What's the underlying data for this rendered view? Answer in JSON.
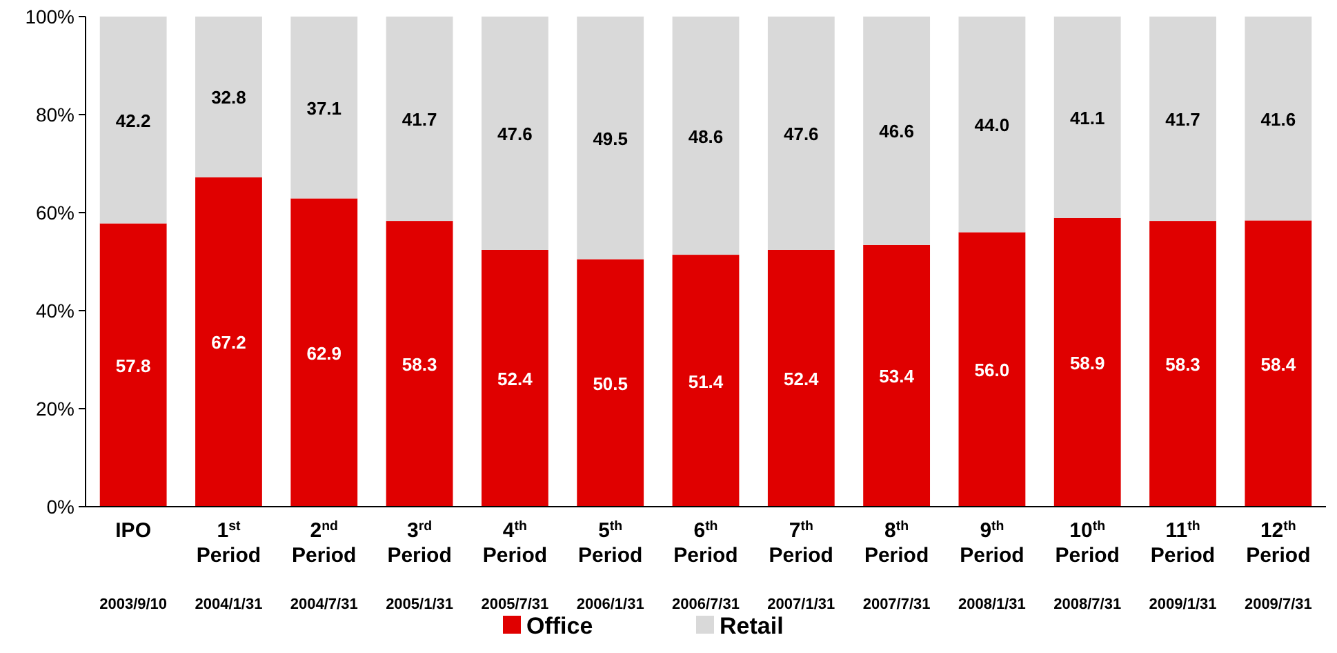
{
  "chart_data": {
    "type": "bar",
    "stacked": true,
    "categories": [
      "IPO\n\n2003/9/10",
      "1$^{st}$\nPeriod\n2004/1/31",
      "2$^{nd}$\nPeriod\n2004/7/31",
      "3$^{rd}$\nPeriod\n2005/1/31",
      "4$^{th}$\nPeriod\n2005/7/31",
      "5$^{th}$\nPeriod\n2006/1/31",
      "6$^{th}$\nPeriod\n2006/7/31",
      "7$^{th}$\nPeriod\n2007/1/31",
      "8$^{th}$\nPeriod\n2007/7/31",
      "9$^{th}$\nPeriod\n2008/1/31",
      "10$^{th}$\nPeriod\n2008/7/31",
      "11$^{th}$\nPeriod\n2009/1/31",
      "12$^{th}$\nPeriod\n2009/7/31"
    ],
    "series": [
      {
        "name": "Office",
        "color": "#e00000",
        "values": [
          57.8,
          67.2,
          62.9,
          58.3,
          52.4,
          50.5,
          51.4,
          52.4,
          53.4,
          56.0,
          58.9,
          58.3,
          58.4
        ],
        "value_labels": [
          "57.8",
          "67.2",
          "62.9",
          "58.3",
          "52.4",
          "50.5",
          "51.4",
          "52.4",
          "53.4",
          "56.0",
          "58.9",
          "58.3",
          "58.4"
        ]
      },
      {
        "name": "Retail",
        "color": "#d9d9d9",
        "values": [
          42.2,
          32.8,
          37.1,
          41.7,
          47.6,
          49.5,
          48.6,
          47.6,
          46.6,
          44.0,
          41.1,
          41.7,
          41.6
        ],
        "value_labels": [
          "42.2",
          "32.8",
          "37.1",
          "41.7",
          "47.6",
          "49.5",
          "48.6",
          "47.6",
          "46.6",
          "44.0",
          "41.1",
          "41.7",
          "41.6"
        ]
      }
    ],
    "ylim": [
      0,
      100
    ],
    "yticks": [
      {
        "value": 0,
        "label": "0%"
      },
      {
        "value": 20,
        "label": "20%"
      },
      {
        "value": 40,
        "label": "40%"
      },
      {
        "value": 60,
        "label": "60%"
      },
      {
        "value": 80,
        "label": "80%"
      },
      {
        "value": 100,
        "label": "100%"
      }
    ],
    "grid": false,
    "legend": "bottom"
  }
}
